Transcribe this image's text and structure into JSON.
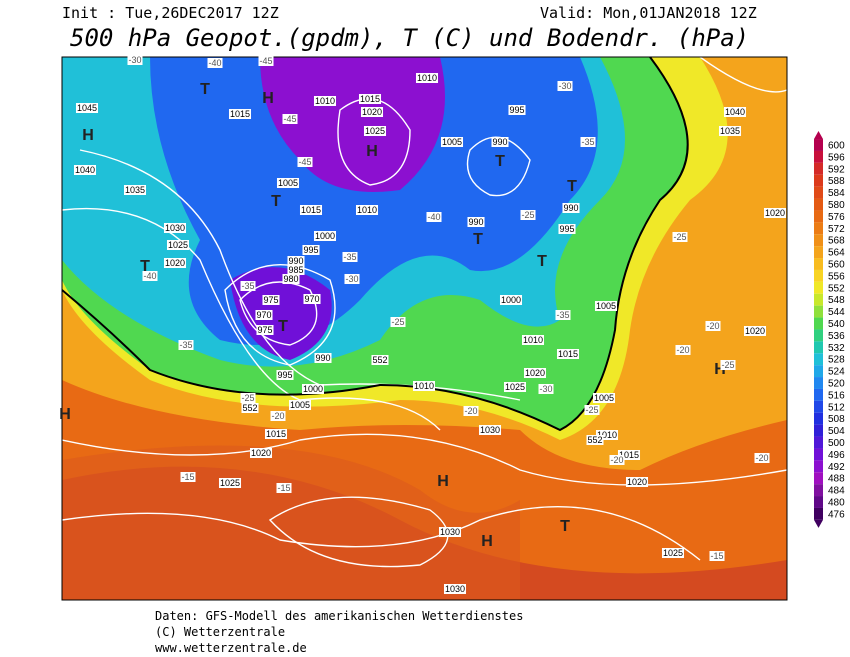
{
  "header": {
    "init": "Init : Tue,26DEC2017 12Z",
    "valid": "Valid: Mon,01JAN2018 12Z",
    "title": "500 hPa Geopot.(gpdm), T (C) und Bodendr. (hPa)"
  },
  "legend": {
    "levels": [
      600,
      596,
      592,
      588,
      584,
      580,
      576,
      572,
      568,
      564,
      560,
      556,
      552,
      548,
      544,
      540,
      536,
      532,
      528,
      524,
      520,
      516,
      512,
      508,
      504,
      500,
      496,
      492,
      488,
      484,
      480,
      476
    ],
    "colors": [
      "#b4004e",
      "#c8103c",
      "#d42a28",
      "#dc3a1c",
      "#e04a18",
      "#e45a14",
      "#e86a14",
      "#ec7c14",
      "#f09018",
      "#f4a41c",
      "#f8bc20",
      "#f8d424",
      "#f0e828",
      "#c8e82c",
      "#90e03c",
      "#50d850",
      "#30d080",
      "#20c8b0",
      "#20c0d8",
      "#20a8e8",
      "#2088f0",
      "#2068f0",
      "#2048e8",
      "#2030e0",
      "#3020d8",
      "#5018d8",
      "#7010d8",
      "#8c10d0",
      "#a010c0",
      "#8010a0",
      "#600888",
      "#400060"
    ]
  },
  "map": {
    "centers": [
      "T",
      "H",
      "H",
      "H",
      "T",
      "T",
      "T",
      "T",
      "T",
      "T",
      "T",
      "H",
      "H",
      "H",
      "H",
      "T"
    ],
    "isobars": [
      "1045",
      "1040",
      "1035",
      "1030",
      "1025",
      "1020",
      "1015",
      "1010",
      "1015",
      "1020",
      "1025",
      "1010",
      "995",
      "990",
      "1005",
      "1005",
      "1015",
      "1010",
      "1000",
      "995",
      "990",
      "985",
      "980",
      "975",
      "970",
      "970",
      "975",
      "990",
      "995",
      "1000",
      "1005",
      "1015",
      "1020",
      "1025",
      "990",
      "990",
      "995",
      "1000",
      "1005",
      "1010",
      "1015",
      "1020",
      "1025",
      "1010",
      "1030",
      "1005",
      "1010",
      "1015",
      "1020",
      "1030",
      "1025",
      "1030",
      "1040",
      "1035",
      "1020",
      "1020",
      "552",
      "552",
      "552"
    ],
    "isotherms": [
      "-40",
      "-45",
      "-30",
      "-45",
      "-45",
      "-40",
      "-35",
      "-30",
      "-35",
      "-40",
      "-35",
      "-25",
      "-30",
      "-35",
      "-25",
      "-20",
      "-20",
      "-25",
      "-35",
      "-25",
      "-20",
      "-20",
      "-30",
      "-25",
      "-15",
      "-15",
      "-20",
      "-15",
      "-25",
      "-20"
    ]
  },
  "footer": {
    "lines": [
      "Daten: GFS-Modell des amerikanischen Wetterdienstes",
      "(C) Wetterzentrale",
      "www.wetterzentrale.de"
    ]
  }
}
